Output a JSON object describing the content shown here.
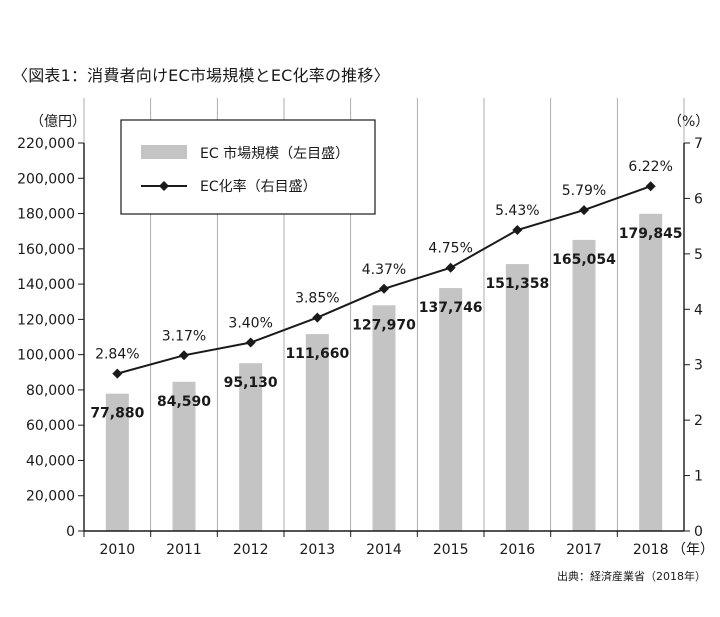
{
  "title": "〈図表1：消費者向けEC市場規模とEC化率の推移〉",
  "source": "出典：経済産業省（2018年）",
  "chart_data": {
    "type": "bar",
    "categories": [
      "2010",
      "2011",
      "2012",
      "2013",
      "2014",
      "2015",
      "2016",
      "2017",
      "2018"
    ],
    "xunit": "（年）",
    "series": [
      {
        "name": "EC 市場規模（左目盛）",
        "type": "bar",
        "axis": "left",
        "color": "#c4c4c4",
        "values": [
          77880,
          84590,
          95130,
          111660,
          127970,
          137746,
          151358,
          165054,
          179845
        ],
        "labels": [
          "77,880",
          "84,590",
          "95,130",
          "111,660",
          "127,970",
          "137,746",
          "151,358",
          "165,054",
          "179,845"
        ]
      },
      {
        "name": "EC化率（右目盛）",
        "type": "line",
        "axis": "right",
        "color": "#1a1a1a",
        "values": [
          2.84,
          3.17,
          3.4,
          3.85,
          4.37,
          4.75,
          5.43,
          5.79,
          6.22
        ],
        "labels": [
          "2.84%",
          "3.17%",
          "3.40%",
          "3.85%",
          "4.37%",
          "4.75%",
          "5.43%",
          "5.79%",
          "6.22%"
        ]
      }
    ],
    "left_axis": {
      "unit": "（億円）",
      "ylim": [
        0,
        220000
      ],
      "ticks": [
        "0",
        "20,000",
        "40,000",
        "60,000",
        "80,000",
        "100,000",
        "120,000",
        "140,000",
        "160,000",
        "180,000",
        "200,000",
        "220,000"
      ]
    },
    "right_axis": {
      "unit": "（%）",
      "ylim": [
        0,
        7
      ],
      "ticks": [
        "0",
        "1",
        "2",
        "3",
        "4",
        "5",
        "6",
        "7"
      ]
    },
    "grid": "vertical",
    "legend_position": "top-left"
  }
}
